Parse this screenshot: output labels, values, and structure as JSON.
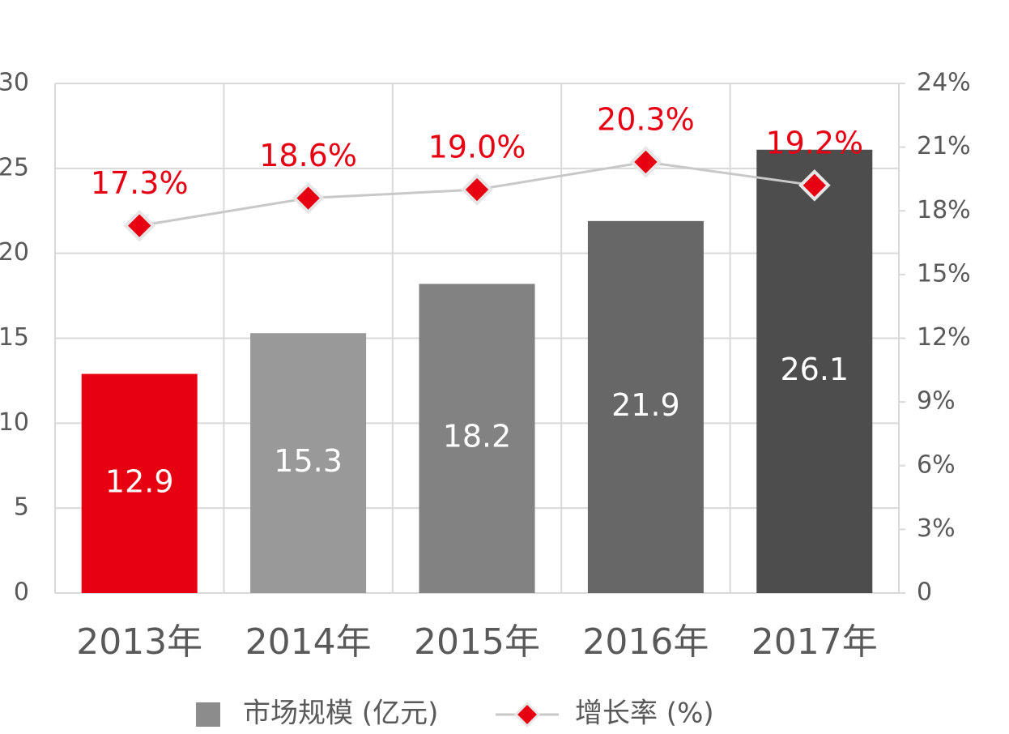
{
  "chart_data": {
    "type": "bar",
    "categories": [
      "2013年",
      "2014年",
      "2015年",
      "2016年",
      "2017年"
    ],
    "series": [
      {
        "name": "市场规模 (亿元)",
        "type": "bar",
        "color": "#8c8c8c",
        "colors": [
          "#e60012",
          "#999999",
          "#828282",
          "#676767",
          "#4d4d4d"
        ],
        "values": [
          12.9,
          15.3,
          18.2,
          21.9,
          26.1
        ]
      },
      {
        "name": "增长率 (%)",
        "type": "line",
        "axis": "y2",
        "color": "#e60012",
        "line_color": "#c8c8c8",
        "values": [
          17.3,
          18.6,
          19.0,
          20.3,
          19.2
        ],
        "value_labels": [
          "17.3%",
          "18.6%",
          "19.0%",
          "20.3%",
          "19.2%"
        ]
      }
    ],
    "ylim": [
      0,
      30
    ],
    "yticks": [
      0,
      5,
      10,
      15,
      20,
      25,
      30
    ],
    "y2lim": [
      0,
      24
    ],
    "y2ticks": [
      0,
      {
        "value": 3,
        "label": "3%"
      },
      {
        "value": 6,
        "label": "6%"
      },
      {
        "value": 9,
        "label": "9%"
      },
      {
        "value": 12,
        "label": "12%"
      },
      {
        "value": 15,
        "label": "15%"
      },
      {
        "value": 18,
        "label": "18%"
      },
      {
        "value": 21,
        "label": "21%"
      },
      {
        "value": 24,
        "label": "24%"
      }
    ],
    "grid": true,
    "legend": "bottom"
  }
}
